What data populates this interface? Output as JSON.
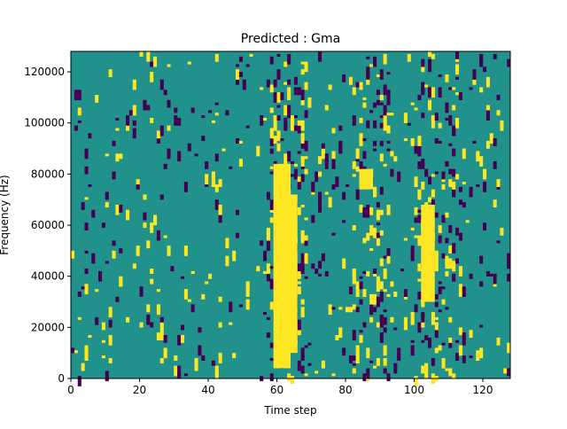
{
  "chart_data": {
    "type": "heatmap",
    "title": "Predicted : Gma",
    "xlabel": "Time step",
    "ylabel": "Frequency (Hz)",
    "xlim": [
      0,
      128
    ],
    "ylim": [
      0,
      128000
    ],
    "x_ticks": [
      "0",
      "20",
      "40",
      "60",
      "80",
      "100",
      "120"
    ],
    "y_ticks": [
      "0",
      "20000",
      "40000",
      "60000",
      "80000",
      "100000",
      "120000"
    ],
    "n_time_steps": 128,
    "n_frequency_bins": 128,
    "colormap": "viridis",
    "colors": {
      "background": "#21918c",
      "high": "#fde725",
      "low": "#440154"
    },
    "bands": [
      {
        "value": "high",
        "time_step_start": 59,
        "time_step_end": 64,
        "freq_start": 4000,
        "freq_end": 84000
      },
      {
        "value": "high",
        "time_step_start": 63,
        "time_step_end": 66,
        "freq_start": 10000,
        "freq_end": 72000
      },
      {
        "value": "high",
        "time_step_start": 102,
        "time_step_end": 106,
        "freq_start": 30000,
        "freq_end": 68000
      },
      {
        "value": "high",
        "time_step_start": 84,
        "time_step_end": 88,
        "freq_start": 74000,
        "freq_end": 82000
      }
    ],
    "grid": false,
    "legend": "none"
  }
}
